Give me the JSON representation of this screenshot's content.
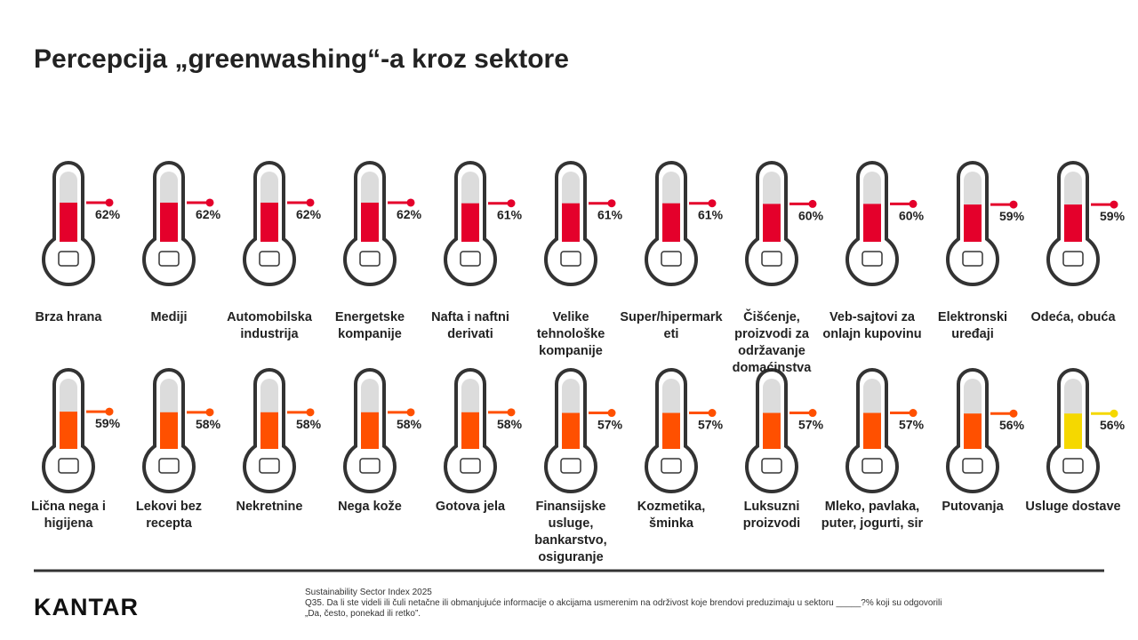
{
  "chart_data": {
    "type": "thermometer",
    "title": "Percepcija „greenwashing“-a kroz sektore",
    "categories": [
      "Brza hrana",
      "Mediji",
      "Automobilska industrija",
      "Energetske kompanije",
      "Nafta i naftni derivati",
      "Velike tehnološke kompanije",
      "Super/hipermarketi",
      "Čišćenje, proizvodi za održavanje domaćinstva",
      "Veb-sajtovi za onlajn kupovinu",
      "Elektronski uređaji",
      "Odeća, obuća",
      "Lična nega i higijena",
      "Lekovi bez recepta",
      "Nekretnine",
      "Nega kože",
      "Gotova jela",
      "Finansijske usluge, bankarstvo, osiguranje",
      "Kozmetika, šminka",
      "Luksuzni proizvodi",
      "Mleko, pavlaka, puter, jogurti, sir",
      "Putovanja",
      "Usluge dostave"
    ],
    "values": [
      62,
      62,
      62,
      62,
      61,
      61,
      61,
      60,
      60,
      59,
      59,
      59,
      58,
      58,
      58,
      58,
      57,
      57,
      57,
      57,
      56,
      56
    ],
    "value_labels": [
      "62%",
      "62%",
      "62%",
      "62%",
      "61%",
      "61%",
      "61%",
      "60%",
      "60%",
      "59%",
      "59%",
      "59%",
      "58%",
      "58%",
      "58%",
      "58%",
      "57%",
      "57%",
      "57%",
      "57%",
      "56%",
      "56%"
    ],
    "colors": [
      "#e4002b",
      "#e4002b",
      "#e4002b",
      "#e4002b",
      "#e4002b",
      "#e4002b",
      "#e4002b",
      "#e4002b",
      "#e4002b",
      "#e4002b",
      "#e4002b",
      "#ff5000",
      "#ff5000",
      "#ff5000",
      "#ff5000",
      "#ff5000",
      "#ff5000",
      "#ff5000",
      "#ff5000",
      "#ff5000",
      "#ff5000",
      "#f5d800"
    ]
  },
  "footer": {
    "brand": "KANTAR",
    "source": [
      "Sustainability Sector Index 2025",
      "Q35. Da li ste videli ili čuli netačne ili obmanjujuće informacije o akcijama usmerenim na održivost koje brendovi preduzimaju u sektoru _____?% koji su odgovorili",
      "„Da, često, ponekad ili retko”."
    ]
  }
}
